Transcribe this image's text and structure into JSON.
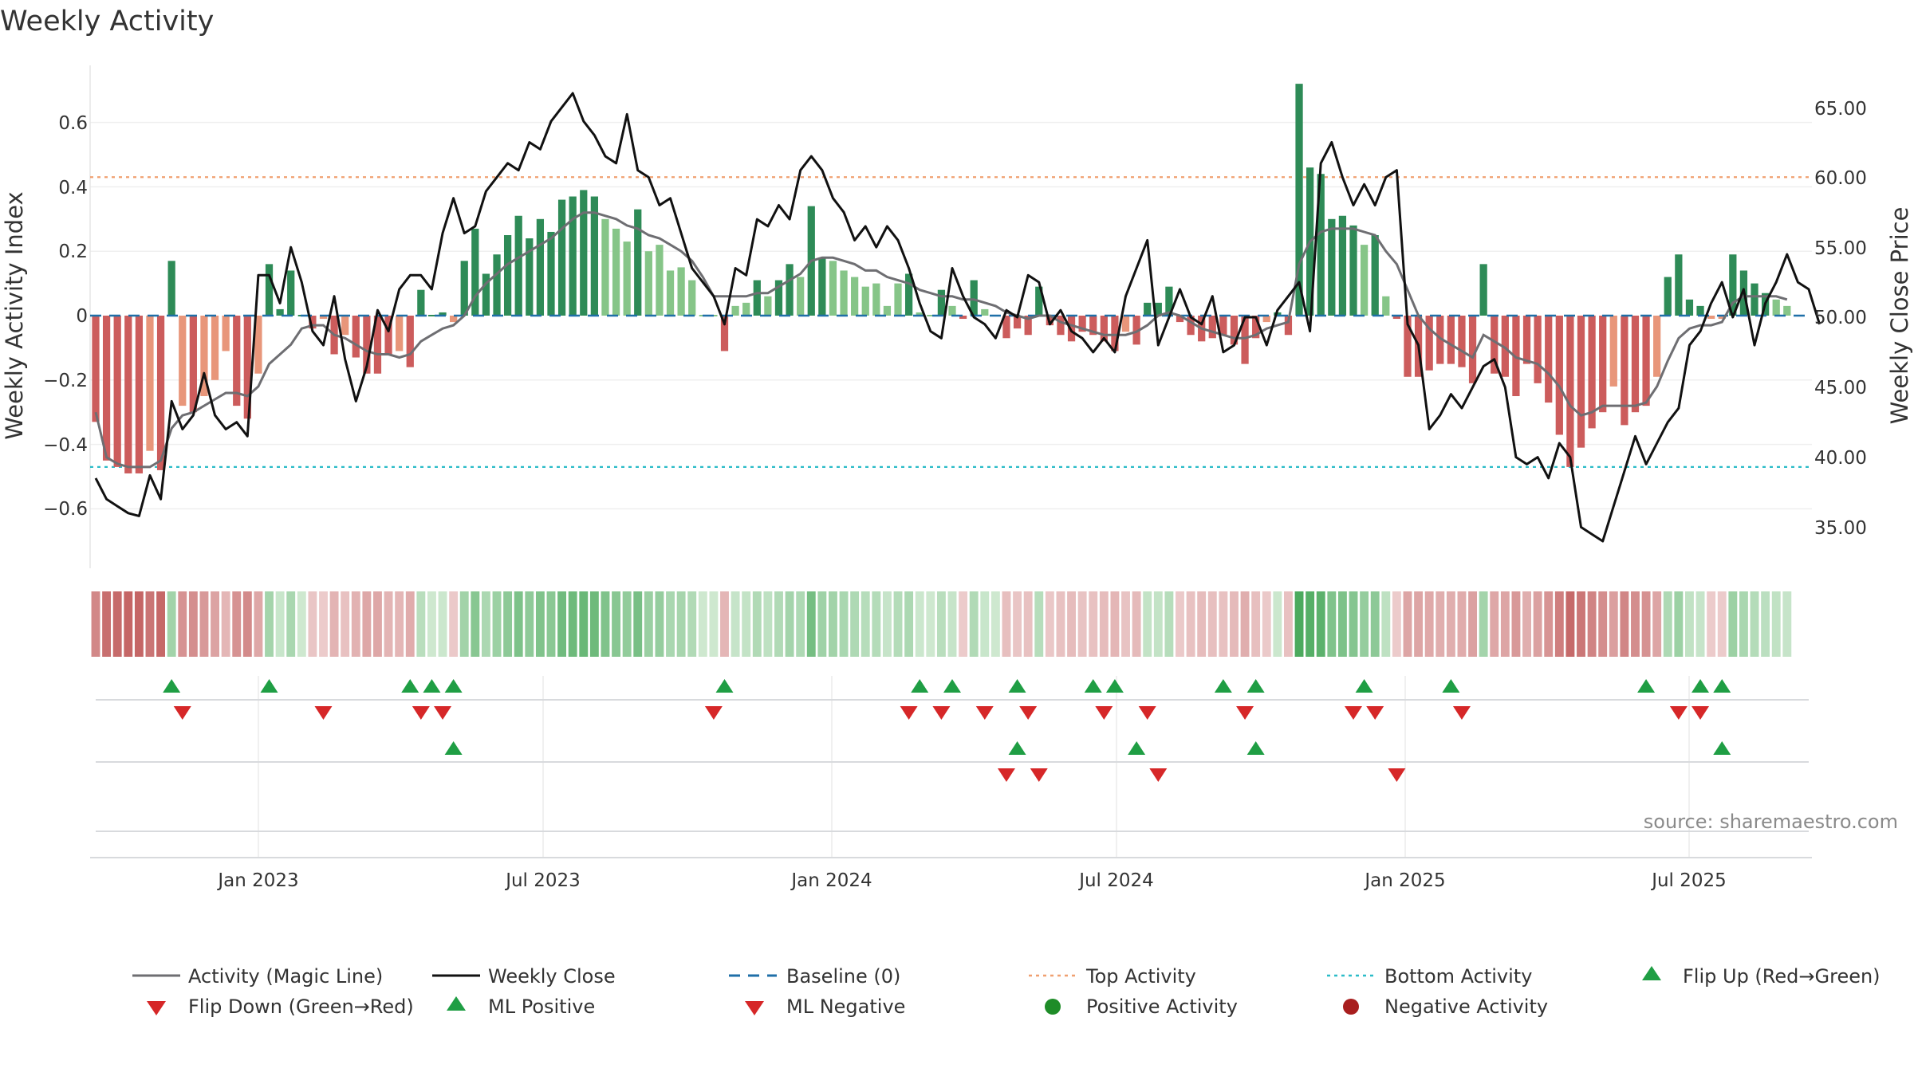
{
  "chart_data": {
    "type": "bar+line",
    "title": "Weekly Activity",
    "ylabel_left": "Weekly Activity Index",
    "ylabel_right": "Weekly Close Price",
    "source": "source: sharemaestro.com",
    "x_ticks": [
      "Jan 2023",
      "Jul 2023",
      "Jan 2024",
      "Jul 2024",
      "Jan 2025",
      "Jul 2025"
    ],
    "y_ticks_left": [
      "0.6",
      "0.4",
      "0.2",
      "0",
      "−0.2",
      "−0.4",
      "−0.6"
    ],
    "y_ticks_right": [
      "65.00",
      "60.00",
      "55.00",
      "50.00",
      "45.00",
      "40.00",
      "35.00"
    ],
    "ylim_left": [
      -0.78,
      0.78
    ],
    "ylim_right": [
      32.0,
      68.0
    ],
    "top_activity": 0.43,
    "bottom_activity": -0.47,
    "weeks": 159,
    "activity": [
      -0.33,
      -0.45,
      -0.47,
      -0.49,
      -0.49,
      -0.42,
      -0.48,
      0.17,
      -0.28,
      -0.3,
      -0.25,
      -0.2,
      -0.11,
      -0.28,
      -0.32,
      -0.18,
      0.16,
      0.02,
      0.14,
      0.0,
      -0.04,
      -0.01,
      -0.12,
      -0.06,
      -0.13,
      -0.18,
      -0.18,
      -0.12,
      -0.11,
      -0.16,
      0.08,
      0.0,
      0.01,
      -0.02,
      0.17,
      0.27,
      0.13,
      0.19,
      0.25,
      0.31,
      0.24,
      0.3,
      0.26,
      0.36,
      0.37,
      0.39,
      0.37,
      0.3,
      0.27,
      0.23,
      0.33,
      0.2,
      0.22,
      0.14,
      0.15,
      0.11,
      0.0,
      0.0,
      -0.11,
      0.03,
      0.04,
      0.11,
      0.06,
      0.11,
      0.16,
      0.12,
      0.34,
      0.18,
      0.17,
      0.14,
      0.12,
      0.09,
      0.1,
      0.03,
      0.1,
      0.13,
      0.01,
      0.0,
      0.08,
      0.03,
      -0.01,
      0.11,
      0.02,
      0.0,
      -0.07,
      -0.04,
      -0.06,
      0.09,
      -0.03,
      -0.06,
      -0.08,
      -0.05,
      -0.06,
      -0.08,
      -0.11,
      -0.05,
      -0.09,
      0.04,
      0.04,
      0.09,
      -0.02,
      -0.06,
      -0.08,
      -0.07,
      -0.06,
      -0.09,
      -0.15,
      -0.07,
      -0.02,
      0.01,
      -0.06,
      0.72,
      0.46,
      0.44,
      0.3,
      0.31,
      0.28,
      0.22,
      0.25,
      0.06,
      -0.01,
      -0.19,
      -0.19,
      -0.17,
      -0.15,
      -0.15,
      -0.16,
      -0.21,
      0.16,
      -0.18,
      -0.19,
      -0.25,
      -0.15,
      -0.21,
      -0.27,
      -0.37,
      -0.47,
      -0.41,
      -0.35,
      -0.3,
      -0.22,
      -0.34,
      -0.3,
      -0.28,
      -0.19,
      0.12,
      0.19,
      0.05,
      0.03,
      -0.01,
      -0.01,
      0.19,
      0.14,
      0.1,
      0.07,
      0.05,
      0.03
    ],
    "magic_line": [
      -0.3,
      -0.44,
      -0.46,
      -0.47,
      -0.47,
      -0.47,
      -0.45,
      -0.35,
      -0.31,
      -0.3,
      -0.28,
      -0.26,
      -0.24,
      -0.24,
      -0.25,
      -0.22,
      -0.15,
      -0.12,
      -0.09,
      -0.04,
      -0.03,
      -0.03,
      -0.06,
      -0.07,
      -0.09,
      -0.11,
      -0.12,
      -0.12,
      -0.13,
      -0.12,
      -0.08,
      -0.06,
      -0.04,
      -0.03,
      0.0,
      0.06,
      0.1,
      0.13,
      0.16,
      0.18,
      0.2,
      0.22,
      0.24,
      0.27,
      0.3,
      0.32,
      0.32,
      0.31,
      0.3,
      0.28,
      0.27,
      0.25,
      0.24,
      0.22,
      0.2,
      0.17,
      0.12,
      0.06,
      0.06,
      0.06,
      0.06,
      0.07,
      0.07,
      0.09,
      0.11,
      0.13,
      0.17,
      0.18,
      0.18,
      0.17,
      0.16,
      0.14,
      0.14,
      0.12,
      0.11,
      0.1,
      0.08,
      0.07,
      0.06,
      0.06,
      0.05,
      0.05,
      0.04,
      0.03,
      0.01,
      0.0,
      -0.01,
      0.0,
      0.0,
      -0.02,
      -0.03,
      -0.04,
      -0.05,
      -0.06,
      -0.06,
      -0.06,
      -0.05,
      -0.03,
      0.0,
      0.01,
      0.0,
      -0.02,
      -0.04,
      -0.05,
      -0.06,
      -0.07,
      -0.07,
      -0.06,
      -0.04,
      -0.03,
      -0.02,
      0.16,
      0.23,
      0.26,
      0.27,
      0.27,
      0.27,
      0.26,
      0.25,
      0.2,
      0.16,
      0.08,
      0.0,
      -0.04,
      -0.07,
      -0.09,
      -0.11,
      -0.13,
      -0.06,
      -0.08,
      -0.1,
      -0.13,
      -0.14,
      -0.15,
      -0.18,
      -0.22,
      -0.28,
      -0.31,
      -0.3,
      -0.28,
      -0.28,
      -0.28,
      -0.28,
      -0.27,
      -0.22,
      -0.14,
      -0.07,
      -0.04,
      -0.03,
      -0.03,
      -0.02,
      0.04,
      0.06,
      0.06,
      0.06,
      0.06,
      0.05
    ],
    "weekly_close": [
      38.5,
      37.0,
      36.5,
      36.0,
      35.8,
      38.7,
      37.0,
      44.0,
      42.0,
      43.0,
      46.0,
      43.0,
      42.0,
      42.5,
      41.5,
      53.0,
      53.0,
      51.0,
      55.0,
      52.5,
      49.0,
      48.0,
      51.5,
      47.0,
      44.0,
      46.5,
      50.5,
      49.0,
      52.0,
      53.0,
      53.0,
      52.0,
      56.0,
      58.5,
      56.0,
      56.5,
      59.0,
      60.0,
      61.0,
      60.5,
      62.5,
      62.0,
      64.0,
      65.0,
      66.0,
      64.0,
      63.0,
      61.5,
      61.0,
      64.5,
      60.5,
      60.0,
      58.0,
      58.5,
      56.0,
      53.5,
      52.5,
      51.5,
      49.5,
      53.5,
      53.0,
      57.0,
      56.5,
      58.0,
      57.0,
      60.5,
      61.5,
      60.5,
      58.5,
      57.5,
      55.5,
      56.5,
      55.0,
      56.5,
      55.5,
      53.5,
      51.0,
      49.0,
      48.5,
      53.5,
      51.5,
      50.0,
      49.5,
      48.5,
      50.5,
      50.0,
      53.0,
      52.5,
      49.5,
      50.5,
      49.0,
      48.5,
      47.5,
      48.5,
      47.5,
      51.5,
      53.5,
      55.5,
      48.0,
      50.0,
      52.0,
      50.0,
      49.5,
      51.5,
      47.5,
      48.0,
      50.0,
      50.0,
      48.0,
      50.5,
      51.5,
      52.5,
      49.0,
      61.0,
      62.5,
      60.0,
      58.0,
      59.5,
      58.0,
      60.0,
      60.5,
      49.5,
      48.0,
      42.0,
      43.0,
      44.5,
      43.5,
      45.0,
      46.5,
      47.0,
      45.0,
      40.0,
      39.5,
      40.0,
      38.5,
      41.0,
      40.0,
      35.0,
      34.5,
      34.0,
      36.5,
      39.0,
      41.5,
      39.5,
      41.0,
      42.5,
      43.5,
      48.0,
      49.0,
      51.0,
      52.5,
      50.0,
      52.0,
      48.0,
      51.0,
      52.5,
      54.5,
      52.5,
      52.0,
      49.5
    ],
    "heat_strip": "weekly activity color band",
    "flip_up_weeks": [
      7,
      16,
      29,
      31,
      33,
      58,
      76,
      79,
      85,
      92,
      94,
      104,
      107,
      117,
      125,
      143,
      148,
      150
    ],
    "flip_down_weeks": [
      8,
      21,
      30,
      32,
      57,
      75,
      78,
      82,
      86,
      93,
      97,
      106,
      116,
      118,
      126,
      146,
      148
    ],
    "ml_positive_weeks": [
      33,
      85,
      96,
      107,
      150
    ],
    "ml_negative_weeks": [
      84,
      87,
      98,
      120
    ],
    "legend": [
      "Activity (Magic Line)",
      "Weekly Close",
      "Baseline (0)",
      "Top Activity",
      "Bottom Activity",
      "Flip Up (Red→Green)",
      "Flip Down (Green→Red)",
      "ML Positive",
      "ML Negative",
      "Positive Activity",
      "Negative Activity"
    ],
    "colors": {
      "pos_dark": "#2e8b57",
      "pos_light": "#86c588",
      "neg_dark": "#cc5c5c",
      "neg_light": "#e8967a",
      "magic_line": "#6e6e72",
      "close": "#111111",
      "baseline": "#1f6fa8",
      "top": "#f0a070",
      "bottom": "#2bbcc8",
      "marker_up": "#1f9e44",
      "marker_down": "#d62728",
      "pos_dot": "#1e8c28",
      "neg_dot": "#a81e1e"
    }
  }
}
